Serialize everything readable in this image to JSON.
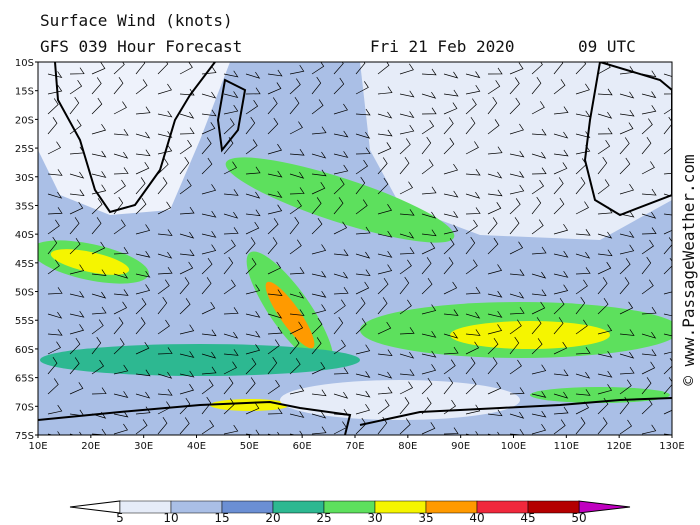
{
  "header": {
    "title": "Surface Wind (knots)",
    "model": "GFS 039 Hour Forecast",
    "date": "Fri 21 Feb 2020",
    "time": "09 UTC"
  },
  "axes": {
    "latitudes": [
      "10S",
      "15S",
      "20S",
      "25S",
      "30S",
      "35S",
      "40S",
      "45S",
      "50S",
      "55S",
      "60S",
      "65S",
      "70S",
      "75S"
    ],
    "longitudes": [
      "10E",
      "20E",
      "30E",
      "40E",
      "50E",
      "60E",
      "70E",
      "80E",
      "90E",
      "100E",
      "110E",
      "120E",
      "130E"
    ]
  },
  "legend": {
    "labels": [
      5,
      10,
      15,
      20,
      25,
      30,
      35,
      40,
      45,
      50
    ]
  },
  "credit": "© www.PassageWeather.com"
}
